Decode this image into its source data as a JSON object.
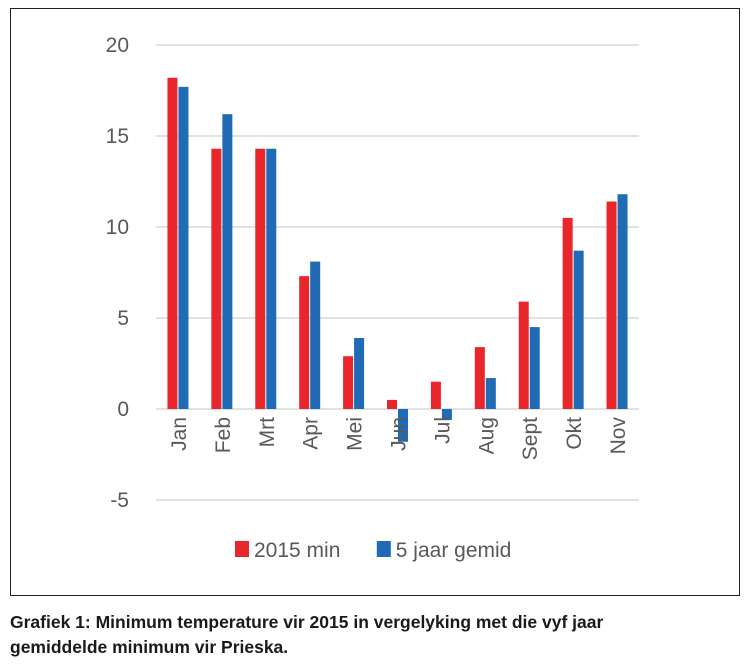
{
  "chart_data": {
    "type": "bar",
    "categories": [
      "Jan",
      "Feb",
      "Mrt",
      "Apr",
      "Mei",
      "Jun",
      "Jul",
      "Aug",
      "Sept",
      "Okt",
      "Nov"
    ],
    "series": [
      {
        "name": "2015 min",
        "color": "#e8262b",
        "values": [
          18.2,
          14.3,
          14.3,
          7.3,
          2.9,
          0.5,
          1.5,
          3.4,
          5.9,
          10.5,
          11.4
        ]
      },
      {
        "name": "5 jaar gemid",
        "color": "#1f6bb5",
        "values": [
          17.7,
          16.2,
          14.3,
          8.1,
          3.9,
          -1.8,
          -0.6,
          1.7,
          4.5,
          8.7,
          11.8
        ]
      }
    ],
    "ylim": [
      -5,
      20
    ],
    "yticks": [
      -5,
      0,
      5,
      10,
      15,
      20
    ],
    "grid": true,
    "legend_position": "bottom",
    "title": "",
    "xlabel": "",
    "ylabel": ""
  },
  "caption": {
    "line1": "Grafiek 1: Minimum temperature vir 2015 in vergelyking met die vyf jaar",
    "line2": "gemiddelde minimum vir Prieska."
  }
}
